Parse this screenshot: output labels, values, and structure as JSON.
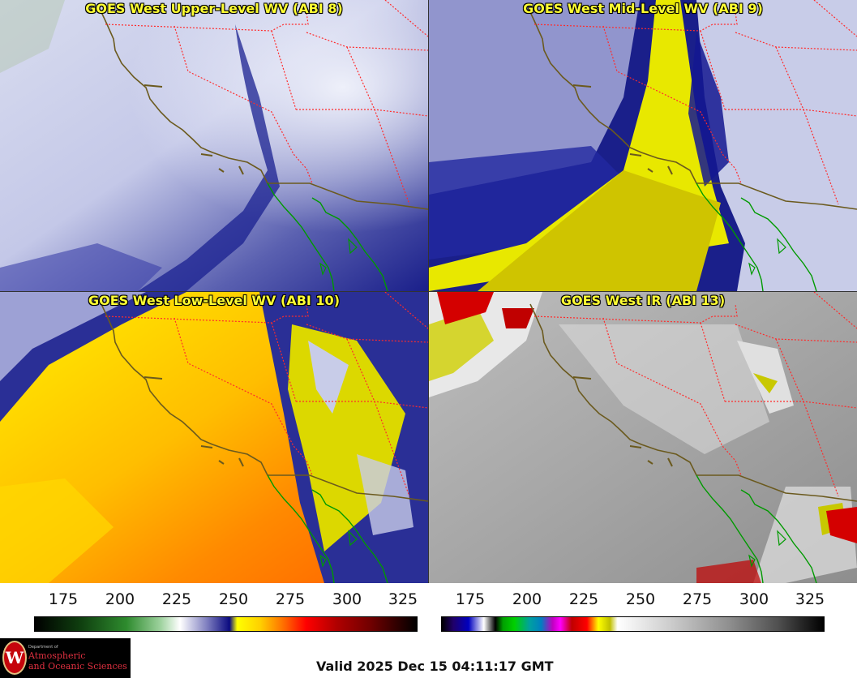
{
  "panels": [
    {
      "title": "GOES West Upper-Level WV (ABI 8)"
    },
    {
      "title": "GOES West Mid-Level WV (ABI 9)"
    },
    {
      "title": "GOES West Low-Level WV (ABI 10)"
    },
    {
      "title": "GOES West IR (ABI 13)"
    }
  ],
  "colorbar_left": {
    "ticks": [
      "175",
      "200",
      "225",
      "250",
      "275",
      "300",
      "325"
    ]
  },
  "colorbar_right": {
    "ticks": [
      "175",
      "200",
      "225",
      "250",
      "275",
      "300",
      "325"
    ]
  },
  "logo": {
    "dept": "Department of",
    "line1": "Atmospheric",
    "line2": "and Oceanic Sciences",
    "seal": "W"
  },
  "valid_time": "Valid 2025 Dec 15 04:11:17 GMT",
  "colors": {
    "title": "#ffff33",
    "coastline": "#6b5a1e",
    "state_border": "#ff3030",
    "mexico_coast": "#00a000"
  }
}
